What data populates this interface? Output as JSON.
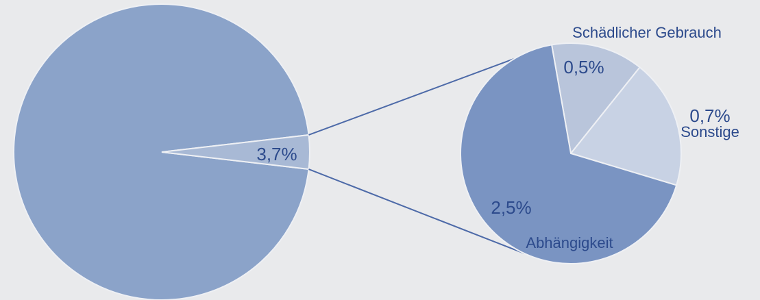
{
  "chart_data": {
    "type": "pie",
    "subtype": "pie-of-pie",
    "main_pie": {
      "slices": [
        {
          "label": "",
          "value": 96.3
        },
        {
          "label": "3,7%",
          "value": 3.7,
          "exploded_into_detail": true
        }
      ],
      "colors": {
        "rest": "#8ba3c9",
        "highlighted": "#a8b9d5"
      }
    },
    "detail_pie": {
      "slices": [
        {
          "name": "Schädlicher Gebrauch",
          "value": 0.5,
          "value_label": "0,5%",
          "color": "#b9c5db"
        },
        {
          "name": "Sonstige",
          "value": 0.7,
          "value_label": "0,7%",
          "color": "#c8d2e4"
        },
        {
          "name": "Abhängigkeit",
          "value": 2.5,
          "value_label": "2,5%",
          "color": "#7a94c2"
        }
      ]
    },
    "text_color": "#2c4a8c",
    "connector_color": "#4d6aa8",
    "background": "#e9eaec"
  }
}
